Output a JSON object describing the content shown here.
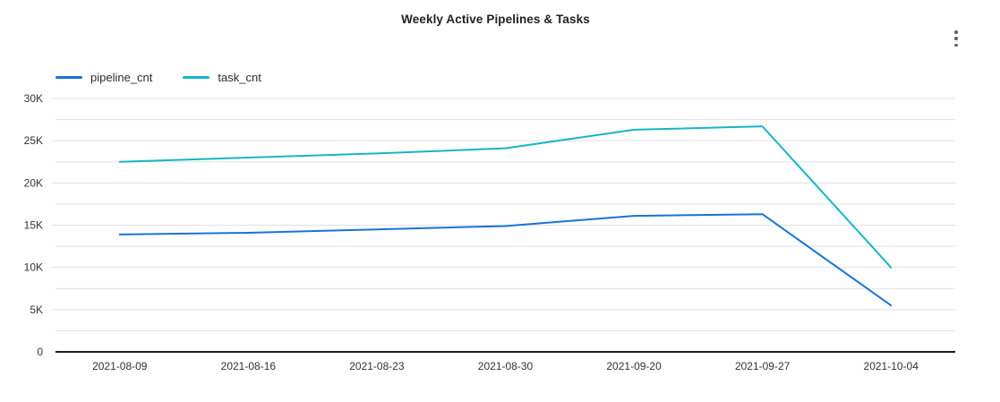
{
  "header": {
    "title": "Weekly Active Pipelines & Tasks"
  },
  "chart_data": {
    "type": "line",
    "title": "Weekly Active Pipelines & Tasks",
    "categories": [
      "2021-08-09",
      "2021-08-16",
      "2021-08-23",
      "2021-08-30",
      "2021-09-20",
      "2021-09-27",
      "2021-10-04"
    ],
    "series": [
      {
        "name": "pipeline_cnt",
        "color": "#1a73d8",
        "values": [
          13900,
          14100,
          14500,
          14900,
          16100,
          16300,
          5500
        ]
      },
      {
        "name": "task_cnt",
        "color": "#17b5c5",
        "values": [
          22500,
          23000,
          23500,
          24100,
          26300,
          26700,
          10000
        ]
      }
    ],
    "xlabel": "",
    "ylabel": "",
    "ylim": [
      0,
      30000
    ],
    "y_tick_step": 5000,
    "y_minor_step": 2500,
    "y_tick_labels": [
      "0",
      "5K",
      "10K",
      "15K",
      "20K",
      "25K",
      "30K"
    ],
    "grid": true,
    "legend_position": "top-left"
  },
  "icons": {
    "menu": "kebab-menu"
  },
  "colors": {
    "background": "#ffffff",
    "gridline": "#e1e1e1",
    "axis_line": "#1c1c1c",
    "axis_label": "#333333",
    "title_text": "#202124",
    "menu_icon": "#5f6368"
  }
}
